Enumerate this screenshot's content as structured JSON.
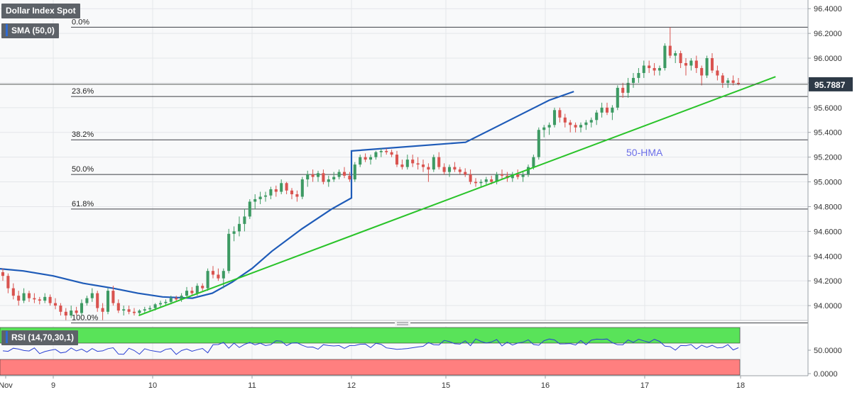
{
  "instrument": "Dollar Index Spot",
  "indicator_main": "SMA (50,0)",
  "indicator_rsi": "RSI (14,70,30,1)",
  "current_price": "95.7887",
  "annotation_hma": "50-HMA",
  "colors": {
    "up_candle": "#3d9a63",
    "down_candle": "#d9534f",
    "hma_line": "#1e5bb8",
    "trend_line": "#29c329",
    "rsi_line": "#2a3fd4",
    "rsi_overbought_zone": "#59e359",
    "rsi_oversold_zone": "#ff7f7f",
    "price_badge": "#2e3a47",
    "annotation_text": "#6b6ee8"
  },
  "chart_data": [
    {
      "type": "candlestick",
      "title": "Dollar Index Spot",
      "x_tick_labels": [
        "Nov",
        "9",
        "10",
        "11",
        "12",
        "15",
        "16",
        "17",
        "18"
      ],
      "y_tick_labels": [
        "96.4000",
        "96.2000",
        "96.0000",
        "95.8000",
        "95.6000",
        "95.4000",
        "95.2000",
        "95.0000",
        "94.8000",
        "94.6000",
        "94.4000",
        "94.2000",
        "94.0000"
      ],
      "ylim": [
        93.88,
        96.47
      ],
      "grid": true,
      "last_price": 95.7887,
      "fibonacci_levels": [
        {
          "label": "0.0%",
          "value": 96.25
        },
        {
          "label": "23.6%",
          "value": 95.69
        },
        {
          "label": "38.2%",
          "value": 95.34
        },
        {
          "label": "50.0%",
          "value": 95.06
        },
        {
          "label": "61.8%",
          "value": 94.78
        },
        {
          "label": "100.0%",
          "value": 93.86
        }
      ],
      "trend_line": {
        "from": [
          9.86,
          93.92
        ],
        "to": [
          18.35,
          95.85
        ]
      },
      "hma_50": [
        [
          8.0,
          94.31
        ],
        [
          8.3,
          94.31
        ],
        [
          8.7,
          94.28
        ],
        [
          9.0,
          94.24
        ],
        [
          9.3,
          94.18
        ],
        [
          9.6,
          94.14
        ],
        [
          9.85,
          94.1
        ],
        [
          10.1,
          94.07
        ],
        [
          10.4,
          94.06
        ],
        [
          10.6,
          94.1
        ],
        [
          10.8,
          94.19
        ],
        [
          11.0,
          94.3
        ],
        [
          11.2,
          94.44
        ],
        [
          11.5,
          94.62
        ],
        [
          11.8,
          94.78
        ],
        [
          12.0,
          94.87
        ],
        [
          12.3,
          94.96
        ],
        [
          12.6,
          95.03
        ],
        [
          12.9,
          95.07
        ],
        [
          13.4,
          95.09
        ],
        [
          13.8,
          95.12
        ],
        [
          14.0,
          95.16
        ],
        [
          14.3,
          95.19
        ],
        [
          14.6,
          95.22
        ],
        [
          14.9,
          95.25
        ],
        [
          15.2,
          95.32
        ],
        [
          15.5,
          95.44
        ],
        [
          15.8,
          95.56
        ],
        [
          16.05,
          95.66
        ],
        [
          16.3,
          95.73
        ]
      ],
      "candles_ohlc": [
        [
          94.27,
          94.3,
          94.2,
          94.24
        ],
        [
          94.24,
          94.26,
          94.1,
          94.14
        ],
        [
          94.14,
          94.18,
          94.05,
          94.08
        ],
        [
          94.08,
          94.12,
          94.0,
          94.04
        ],
        [
          94.04,
          94.14,
          94.02,
          94.1
        ],
        [
          94.1,
          94.12,
          94.03,
          94.06
        ],
        [
          94.06,
          94.1,
          94.02,
          94.05
        ],
        [
          94.05,
          94.07,
          94.01,
          94.04
        ],
        [
          94.04,
          94.1,
          94.02,
          94.07
        ],
        [
          94.07,
          94.09,
          94.0,
          94.02
        ],
        [
          94.02,
          94.06,
          93.97,
          94.0
        ],
        [
          94.0,
          94.02,
          93.92,
          93.95
        ],
        [
          93.95,
          93.98,
          93.86,
          93.92
        ],
        [
          93.92,
          94.0,
          93.9,
          93.96
        ],
        [
          93.96,
          93.99,
          93.92,
          93.94
        ],
        [
          93.94,
          94.05,
          93.92,
          94.02
        ],
        [
          94.02,
          94.08,
          94.0,
          94.06
        ],
        [
          94.06,
          94.14,
          94.03,
          94.1
        ],
        [
          94.1,
          94.12,
          93.95,
          93.98
        ],
        [
          93.98,
          94.02,
          93.88,
          93.95
        ],
        [
          93.95,
          94.14,
          93.93,
          94.12
        ],
        [
          94.12,
          94.16,
          94.0,
          94.02
        ],
        [
          94.02,
          94.05,
          93.94,
          93.96
        ],
        [
          93.96,
          94.0,
          93.92,
          93.97
        ],
        [
          93.97,
          94.0,
          93.93,
          93.95
        ],
        [
          93.95,
          93.98,
          93.92,
          93.94
        ],
        [
          93.94,
          93.97,
          93.92,
          93.96
        ],
        [
          93.96,
          93.99,
          93.94,
          93.97
        ],
        [
          93.97,
          94.0,
          93.95,
          93.98
        ],
        [
          93.98,
          94.02,
          93.96,
          94.01
        ],
        [
          94.01,
          94.04,
          93.99,
          94.02
        ],
        [
          94.02,
          94.05,
          94.0,
          94.03
        ],
        [
          94.03,
          94.08,
          94.01,
          94.06
        ],
        [
          94.06,
          94.08,
          94.03,
          94.05
        ],
        [
          94.05,
          94.1,
          94.03,
          94.08
        ],
        [
          94.08,
          94.15,
          94.06,
          94.12
        ],
        [
          94.12,
          94.15,
          94.08,
          94.1
        ],
        [
          94.1,
          94.18,
          94.08,
          94.16
        ],
        [
          94.16,
          94.18,
          94.12,
          94.14
        ],
        [
          94.14,
          94.3,
          94.12,
          94.28
        ],
        [
          94.28,
          94.32,
          94.22,
          94.25
        ],
        [
          94.25,
          94.3,
          94.2,
          94.22
        ],
        [
          94.22,
          94.3,
          94.14,
          94.28
        ],
        [
          94.28,
          94.62,
          94.26,
          94.58
        ],
        [
          94.58,
          94.64,
          94.52,
          94.6
        ],
        [
          94.6,
          94.72,
          94.56,
          94.66
        ],
        [
          94.66,
          94.78,
          94.6,
          94.72
        ],
        [
          94.72,
          94.86,
          94.7,
          94.84
        ],
        [
          94.84,
          94.9,
          94.78,
          94.86
        ],
        [
          94.86,
          94.92,
          94.82,
          94.88
        ],
        [
          94.88,
          94.92,
          94.84,
          94.89
        ],
        [
          94.89,
          94.96,
          94.86,
          94.94
        ],
        [
          94.94,
          94.97,
          94.88,
          94.92
        ],
        [
          94.92,
          95.02,
          94.9,
          94.99
        ],
        [
          94.99,
          95.0,
          94.9,
          94.93
        ],
        [
          94.93,
          94.95,
          94.86,
          94.9
        ],
        [
          94.9,
          94.93,
          94.84,
          94.88
        ],
        [
          94.88,
          95.04,
          94.86,
          95.02
        ],
        [
          95.02,
          95.09,
          94.96,
          95.06
        ],
        [
          95.06,
          95.1,
          95.0,
          95.04
        ],
        [
          95.04,
          95.09,
          95.0,
          95.07
        ],
        [
          95.07,
          95.1,
          94.98,
          95.0
        ],
        [
          95.0,
          95.05,
          94.96,
          95.02
        ],
        [
          95.02,
          95.08,
          95.0,
          95.04
        ],
        [
          95.04,
          95.1,
          95.02,
          95.08
        ],
        [
          95.08,
          95.12,
          95.03,
          95.05
        ],
        [
          95.05,
          95.08,
          95.0,
          95.02
        ],
        [
          95.02,
          95.16,
          95.0,
          95.14
        ],
        [
          95.14,
          95.22,
          95.12,
          95.2
        ],
        [
          95.2,
          95.23,
          95.16,
          95.18
        ],
        [
          95.18,
          95.22,
          95.14,
          95.2
        ],
        [
          95.2,
          95.25,
          95.18,
          95.24
        ],
        [
          95.24,
          95.27,
          95.2,
          95.25
        ],
        [
          95.25,
          95.27,
          95.22,
          95.24
        ],
        [
          95.24,
          95.26,
          95.2,
          95.22
        ],
        [
          95.22,
          95.25,
          95.12,
          95.14
        ],
        [
          95.14,
          95.18,
          95.1,
          95.12
        ],
        [
          95.12,
          95.22,
          95.1,
          95.18
        ],
        [
          95.18,
          95.22,
          95.12,
          95.15
        ],
        [
          95.15,
          95.2,
          95.1,
          95.14
        ],
        [
          95.14,
          95.18,
          95.08,
          95.12
        ],
        [
          95.12,
          95.15,
          95.0,
          95.1
        ],
        [
          95.1,
          95.22,
          95.08,
          95.2
        ],
        [
          95.2,
          95.24,
          95.1,
          95.12
        ],
        [
          95.12,
          95.15,
          95.06,
          95.08
        ],
        [
          95.08,
          95.14,
          95.04,
          95.12
        ],
        [
          95.12,
          95.16,
          95.08,
          95.1
        ],
        [
          95.1,
          95.12,
          95.06,
          95.08
        ],
        [
          95.08,
          95.11,
          95.04,
          95.06
        ],
        [
          95.06,
          95.1,
          94.98,
          95.0
        ],
        [
          95.0,
          95.03,
          94.96,
          94.99
        ],
        [
          94.99,
          95.02,
          94.96,
          95.0
        ],
        [
          95.0,
          95.04,
          94.98,
          95.02
        ],
        [
          95.02,
          95.05,
          94.98,
          95.0
        ],
        [
          95.0,
          95.08,
          94.98,
          95.06
        ],
        [
          95.06,
          95.1,
          95.02,
          95.05
        ],
        [
          95.05,
          95.08,
          95.0,
          95.03
        ],
        [
          95.03,
          95.08,
          95.0,
          95.06
        ],
        [
          95.06,
          95.1,
          95.02,
          95.04
        ],
        [
          95.04,
          95.08,
          95.0,
          95.06
        ],
        [
          95.06,
          95.14,
          95.04,
          95.12
        ],
        [
          95.12,
          95.22,
          95.1,
          95.2
        ],
        [
          95.2,
          95.44,
          95.18,
          95.42
        ],
        [
          95.42,
          95.46,
          95.36,
          95.44
        ],
        [
          95.44,
          95.48,
          95.38,
          95.46
        ],
        [
          95.46,
          95.6,
          95.44,
          95.58
        ],
        [
          95.58,
          95.6,
          95.48,
          95.52
        ],
        [
          95.52,
          95.55,
          95.44,
          95.48
        ],
        [
          95.48,
          95.5,
          95.4,
          95.46
        ],
        [
          95.46,
          95.48,
          95.4,
          95.44
        ],
        [
          95.44,
          95.48,
          95.4,
          95.46
        ],
        [
          95.46,
          95.5,
          95.42,
          95.48
        ],
        [
          95.48,
          95.52,
          95.44,
          95.5
        ],
        [
          95.5,
          95.58,
          95.46,
          95.56
        ],
        [
          95.56,
          95.64,
          95.52,
          95.6
        ],
        [
          95.6,
          95.64,
          95.54,
          95.56
        ],
        [
          95.56,
          95.62,
          95.5,
          95.6
        ],
        [
          95.6,
          95.78,
          95.58,
          95.76
        ],
        [
          95.76,
          95.8,
          95.68,
          95.72
        ],
        [
          95.72,
          95.84,
          95.68,
          95.8
        ],
        [
          95.8,
          95.88,
          95.76,
          95.84
        ],
        [
          95.84,
          95.92,
          95.8,
          95.88
        ],
        [
          95.88,
          95.98,
          95.84,
          95.94
        ],
        [
          95.94,
          95.98,
          95.88,
          95.92
        ],
        [
          95.92,
          95.96,
          95.86,
          95.9
        ],
        [
          95.9,
          95.94,
          95.86,
          95.92
        ],
        [
          95.92,
          96.12,
          95.9,
          96.1
        ],
        [
          96.1,
          96.25,
          96.0,
          96.02
        ],
        [
          96.02,
          96.06,
          95.96,
          96.04
        ],
        [
          96.04,
          96.06,
          95.92,
          95.96
        ],
        [
          95.96,
          96.0,
          95.86,
          95.94
        ],
        [
          95.94,
          96.0,
          95.9,
          95.98
        ],
        [
          95.98,
          96.02,
          95.88,
          95.92
        ],
        [
          95.92,
          95.94,
          95.78,
          95.86
        ],
        [
          95.86,
          96.02,
          95.84,
          96.0
        ],
        [
          96.0,
          96.04,
          95.88,
          95.9
        ],
        [
          95.9,
          95.94,
          95.82,
          95.86
        ],
        [
          95.86,
          95.88,
          95.76,
          95.8
        ],
        [
          95.8,
          95.84,
          95.76,
          95.82
        ],
        [
          95.82,
          95.86,
          95.78,
          95.8
        ],
        [
          95.8,
          95.84,
          95.78,
          95.79
        ]
      ]
    },
    {
      "type": "line",
      "title": "RSI (14,70,30,1)",
      "y_tick_labels": [
        "50.0000",
        "0.0000"
      ],
      "ylim": [
        0,
        100
      ],
      "overbought": 70,
      "oversold": 30,
      "current_value": 50
    }
  ],
  "x_axis": {
    "labels": [
      "Nov",
      "9",
      "10",
      "11",
      "12",
      "15",
      "16",
      "17",
      "18"
    ]
  }
}
